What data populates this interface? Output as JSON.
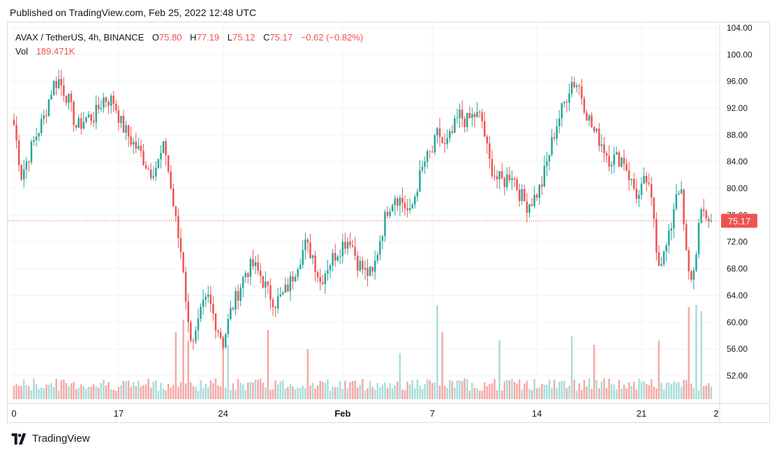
{
  "published": "Published on TradingView.com, Feb 25, 2022 12:48 UTC",
  "branding": {
    "name": "TradingView"
  },
  "legend": {
    "symbol": "AVAX / TetherUS, 4h, BINANCE",
    "o_label": "O",
    "o_value": "75.80",
    "h_label": "H",
    "h_value": "77.19",
    "l_label": "L",
    "l_value": "75.12",
    "c_label": "C",
    "c_value": "75.17",
    "change": "−0.62 (−0.82%)",
    "vol_label": "Vol",
    "vol_value": "189.471K"
  },
  "colors": {
    "up": "#26a69a",
    "down": "#ef5350",
    "up_vol": "#a9ddd8",
    "down_vol": "#f5a8a6",
    "grid": "#f0f3fa",
    "text": "#131722"
  },
  "chart_data": {
    "type": "candlestick",
    "symbol": "AVAX / TetherUS",
    "interval": "4h",
    "exchange": "BINANCE",
    "last_price": 75.17,
    "last_price_label": "75.17",
    "y_ticks": [
      "104.00",
      "100.00",
      "96.00",
      "92.00",
      "88.00",
      "84.00",
      "80.00",
      "76.00",
      "72.00",
      "68.00",
      "64.00",
      "60.00",
      "56.00",
      "52.00"
    ],
    "ylim": [
      48.5,
      104.0
    ],
    "x_ticks": [
      {
        "label": "0",
        "day": 10
      },
      {
        "label": "17",
        "day": 17
      },
      {
        "label": "24",
        "day": 24
      },
      {
        "label": "Feb",
        "day": 32
      },
      {
        "label": "7",
        "day": 38
      },
      {
        "label": "14",
        "day": 45
      },
      {
        "label": "21",
        "day": 52
      },
      {
        "label": "2",
        "day": 57
      }
    ],
    "x_range_days": [
      10.0,
      57.0
    ],
    "anchors": [
      {
        "day": 10.0,
        "price": 89.5
      },
      {
        "day": 10.5,
        "price": 82.0
      },
      {
        "day": 11.0,
        "price": 85.0
      },
      {
        "day": 11.5,
        "price": 88.0
      },
      {
        "day": 12.0,
        "price": 90.5
      },
      {
        "day": 12.6,
        "price": 95.5
      },
      {
        "day": 13.0,
        "price": 96.2
      },
      {
        "day": 13.6,
        "price": 93.5
      },
      {
        "day": 14.2,
        "price": 89.0
      },
      {
        "day": 14.8,
        "price": 90.5
      },
      {
        "day": 15.4,
        "price": 90.8
      },
      {
        "day": 16.0,
        "price": 93.5
      },
      {
        "day": 16.7,
        "price": 93.0
      },
      {
        "day": 17.2,
        "price": 89.5
      },
      {
        "day": 17.9,
        "price": 87.0
      },
      {
        "day": 18.5,
        "price": 85.2
      },
      {
        "day": 19.1,
        "price": 82.5
      },
      {
        "day": 19.6,
        "price": 83.5
      },
      {
        "day": 20.1,
        "price": 86.5
      },
      {
        "day": 20.5,
        "price": 80.0
      },
      {
        "day": 20.9,
        "price": 74.0
      },
      {
        "day": 21.3,
        "price": 69.0
      },
      {
        "day": 21.7,
        "price": 58.5
      },
      {
        "day": 22.1,
        "price": 57.5
      },
      {
        "day": 22.6,
        "price": 62.0
      },
      {
        "day": 23.0,
        "price": 63.5
      },
      {
        "day": 23.5,
        "price": 60.0
      },
      {
        "day": 24.0,
        "price": 57.0
      },
      {
        "day": 24.5,
        "price": 61.5
      },
      {
        "day": 25.0,
        "price": 64.5
      },
      {
        "day": 25.5,
        "price": 67.5
      },
      {
        "day": 26.0,
        "price": 68.5
      },
      {
        "day": 26.5,
        "price": 67.0
      },
      {
        "day": 27.0,
        "price": 64.5
      },
      {
        "day": 27.5,
        "price": 63.0
      },
      {
        "day": 28.0,
        "price": 64.0
      },
      {
        "day": 28.5,
        "price": 66.0
      },
      {
        "day": 29.0,
        "price": 69.0
      },
      {
        "day": 29.5,
        "price": 71.5
      },
      {
        "day": 30.0,
        "price": 70.0
      },
      {
        "day": 30.5,
        "price": 66.0
      },
      {
        "day": 31.0,
        "price": 68.5
      },
      {
        "day": 31.6,
        "price": 70.5
      },
      {
        "day": 32.1,
        "price": 72.0
      },
      {
        "day": 32.5,
        "price": 72.5
      },
      {
        "day": 33.0,
        "price": 69.0
      },
      {
        "day": 33.5,
        "price": 67.5
      },
      {
        "day": 34.0,
        "price": 67.0
      },
      {
        "day": 34.5,
        "price": 72.5
      },
      {
        "day": 35.0,
        "price": 77.0
      },
      {
        "day": 35.5,
        "price": 79.0
      },
      {
        "day": 36.0,
        "price": 78.0
      },
      {
        "day": 36.5,
        "price": 76.0
      },
      {
        "day": 37.0,
        "price": 80.5
      },
      {
        "day": 37.5,
        "price": 84.0
      },
      {
        "day": 38.0,
        "price": 85.5
      },
      {
        "day": 38.4,
        "price": 88.5
      },
      {
        "day": 38.8,
        "price": 86.0
      },
      {
        "day": 39.3,
        "price": 88.0
      },
      {
        "day": 39.8,
        "price": 91.0
      },
      {
        "day": 40.3,
        "price": 90.0
      },
      {
        "day": 40.8,
        "price": 91.0
      },
      {
        "day": 41.3,
        "price": 90.5
      },
      {
        "day": 41.8,
        "price": 84.0
      },
      {
        "day": 42.3,
        "price": 81.5
      },
      {
        "day": 42.8,
        "price": 81.0
      },
      {
        "day": 43.3,
        "price": 82.5
      },
      {
        "day": 43.8,
        "price": 79.5
      },
      {
        "day": 44.3,
        "price": 77.5
      },
      {
        "day": 44.8,
        "price": 78.5
      },
      {
        "day": 45.3,
        "price": 80.5
      },
      {
        "day": 45.8,
        "price": 85.0
      },
      {
        "day": 46.3,
        "price": 89.5
      },
      {
        "day": 46.8,
        "price": 92.5
      },
      {
        "day": 47.3,
        "price": 96.0
      },
      {
        "day": 47.8,
        "price": 95.5
      },
      {
        "day": 48.3,
        "price": 91.5
      },
      {
        "day": 48.8,
        "price": 88.5
      },
      {
        "day": 49.3,
        "price": 87.0
      },
      {
        "day": 49.8,
        "price": 84.5
      },
      {
        "day": 50.3,
        "price": 84.5
      },
      {
        "day": 50.8,
        "price": 84.5
      },
      {
        "day": 51.3,
        "price": 81.0
      },
      {
        "day": 51.8,
        "price": 78.5
      },
      {
        "day": 52.3,
        "price": 81.5
      },
      {
        "day": 52.8,
        "price": 76.5
      },
      {
        "day": 53.1,
        "price": 69.0
      },
      {
        "day": 53.5,
        "price": 70.0
      },
      {
        "day": 53.9,
        "price": 73.0
      },
      {
        "day": 54.3,
        "price": 79.5
      },
      {
        "day": 54.6,
        "price": 80.5
      },
      {
        "day": 55.0,
        "price": 70.0
      },
      {
        "day": 55.2,
        "price": 66.5
      },
      {
        "day": 55.5,
        "price": 67.5
      },
      {
        "day": 55.8,
        "price": 74.0
      },
      {
        "day": 56.1,
        "price": 76.5
      },
      {
        "day": 56.5,
        "price": 75.5
      },
      {
        "day": 56.8,
        "price": 75.17
      }
    ],
    "vol_spikes": [
      {
        "day": 20.9,
        "vol": 160
      },
      {
        "day": 21.3,
        "vol": 190
      },
      {
        "day": 21.7,
        "vol": 140
      },
      {
        "day": 24.0,
        "vol": 150
      },
      {
        "day": 24.4,
        "vol": 130
      },
      {
        "day": 27.0,
        "vol": 165
      },
      {
        "day": 29.6,
        "vol": 120
      },
      {
        "day": 35.8,
        "vol": 110
      },
      {
        "day": 38.3,
        "vol": 400
      },
      {
        "day": 38.6,
        "vol": 160
      },
      {
        "day": 42.5,
        "vol": 140
      },
      {
        "day": 47.4,
        "vol": 150
      },
      {
        "day": 48.8,
        "vol": 130
      },
      {
        "day": 53.1,
        "vol": 140
      },
      {
        "day": 55.2,
        "vol": 220
      },
      {
        "day": 55.7,
        "vol": 230
      },
      {
        "day": 56.0,
        "vol": 210
      }
    ]
  }
}
